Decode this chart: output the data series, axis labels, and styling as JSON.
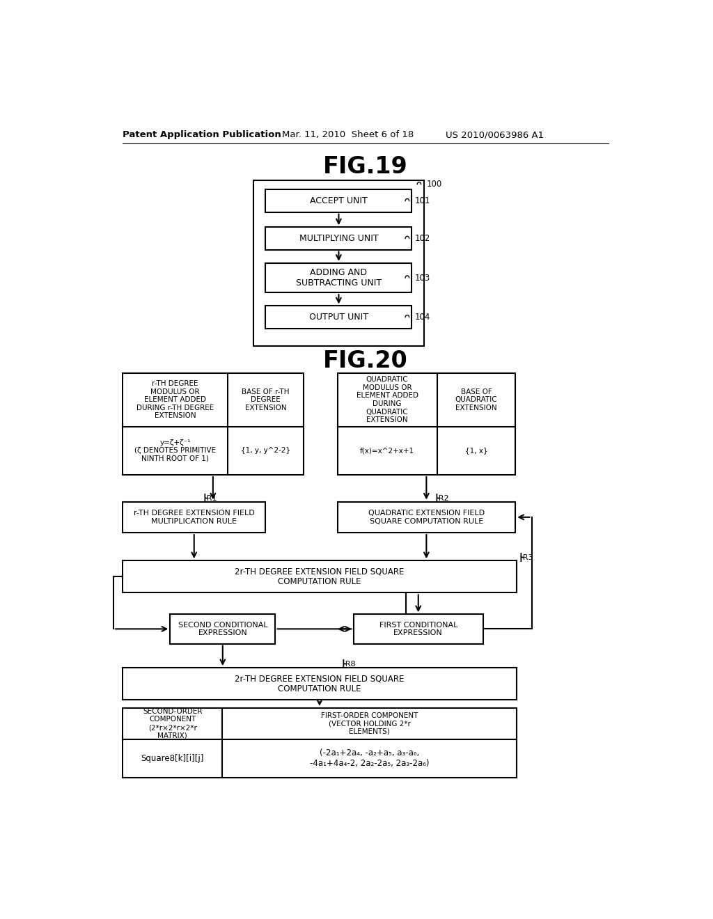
{
  "bg_color": "#ffffff",
  "header_text": "Patent Application Publication",
  "header_date": "Mar. 11, 2010  Sheet 6 of 18",
  "header_patent": "US 2010/0063986 A1",
  "fig19_title": "FIG.19",
  "fig20_title": "FIG.20",
  "fig19_boxes": [
    {
      "label": "ACCEPT UNIT",
      "ref": "101"
    },
    {
      "label": "MULTIPLYING UNIT",
      "ref": "102"
    },
    {
      "label": "ADDING AND\nSUBTRACTING UNIT",
      "ref": "103"
    },
    {
      "label": "OUTPUT UNIT",
      "ref": "104"
    }
  ],
  "fig19_outer_ref": "100",
  "fig20_table_headers": [
    "r-TH DEGREE\nMODULUS OR\nELEMENT ADDED\nDURING r-TH DEGREE\nEXTENSION",
    "BASE OF r-TH\nDEGREE\nEXTENSION",
    "QUADRATIC\nMODULUS OR\nELEMENT ADDED\nDURING\nQUADRATIC\nEXTENSION",
    "BASE OF\nQUADRATIC\nEXTENSION"
  ],
  "fig20_table_row2": [
    "y=ζ+ζ⁻¹\n(ζ DENOTES PRIMITIVE\nNINTH ROOT OF 1)",
    "{1, y, y^2-2}",
    "f(x)=x^2+x+1",
    "{1, x}"
  ],
  "flow_boxes": {
    "r_mult": "r-TH DEGREE EXTENSION FIELD\nMULTIPLICATION RULE",
    "quad_sq": "QUADRATIC EXTENSION FIELD\nSQUARE COMPUTATION RULE",
    "2r_sq1": "2r-TH DEGREE EXTENSION FIELD SQUARE\nCOMPUTATION RULE",
    "first_cond": "FIRST CONDITIONAL\nEXPRESSION",
    "second_cond": "SECOND CONDITIONAL\nEXPRESSION",
    "2r_sq2": "2r-TH DEGREE EXTENSION FIELD SQUARE\nCOMPUTATION RULE"
  },
  "bottom_table": {
    "col1_header": "SECOND-ORDER\nCOMPONENT\n(2*r×2*r×2*r\nMATRIX)",
    "col2_header": "FIRST-ORDER COMPONENT\n(VECTOR HOLDING 2*r\nELEMENTS)",
    "col1_data": "Square8[k][i][j]",
    "col2_data": "(-2a₁+2a₄, -a₂+a₅, a₃-a₆,\n-4a₁+4a₄-2, 2a₂-2a₅, 2a₃-2a₆)"
  }
}
